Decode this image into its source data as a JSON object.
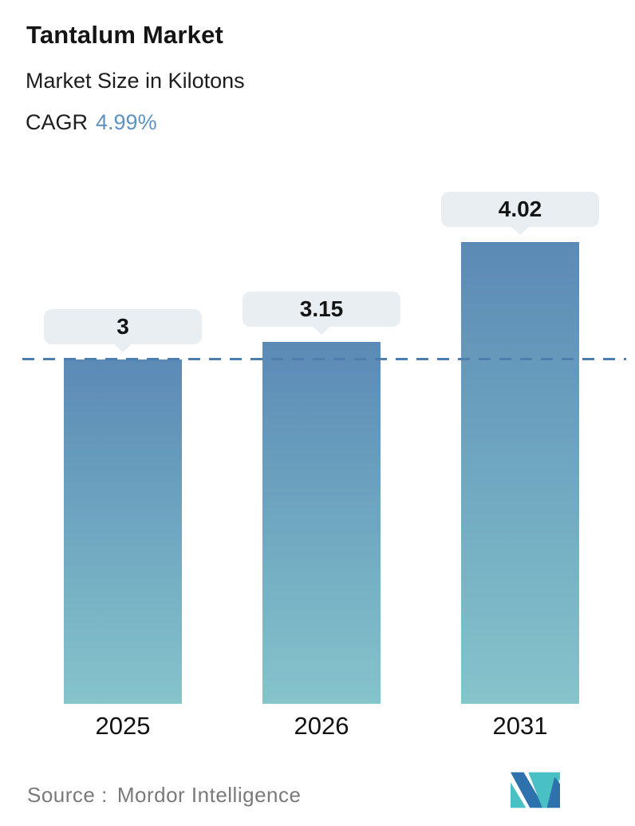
{
  "header": {
    "title": "Tantalum Market",
    "subtitle": "Market Size in Kilotons",
    "cagr_label": "CAGR",
    "cagr_value": "4.99%"
  },
  "chart_data": {
    "type": "bar",
    "categories": [
      "2025",
      "2026",
      "2031"
    ],
    "values": [
      3,
      3.15,
      4.02
    ],
    "value_labels": [
      "3",
      "3.15",
      "4.02"
    ],
    "title": "Tantalum Market",
    "subtitle": "Market Size in Kilotons",
    "cagr": "4.99%",
    "xlabel": "",
    "ylabel": "Market Size in Kilotons",
    "ylim": [
      0,
      4.5
    ],
    "grid": false,
    "legend": false,
    "reference_line": {
      "value": 3,
      "style": "dashed"
    }
  },
  "footer": {
    "source_label": "Source :",
    "source_value": "Mordor Intelligence",
    "logo_name": "mordor-intelligence-logo"
  },
  "colors": {
    "bar_top": "#5b8ab6",
    "bar_bottom": "#84c4cb",
    "dashed_line": "#4d7fae",
    "tooltip_bg": "#e8eef1",
    "accent_blue": "#5f92c1",
    "title_text": "#141414",
    "source_text": "#7a7a7a",
    "logo_teal": "#49c0c4",
    "logo_blue": "#2e72ad"
  }
}
